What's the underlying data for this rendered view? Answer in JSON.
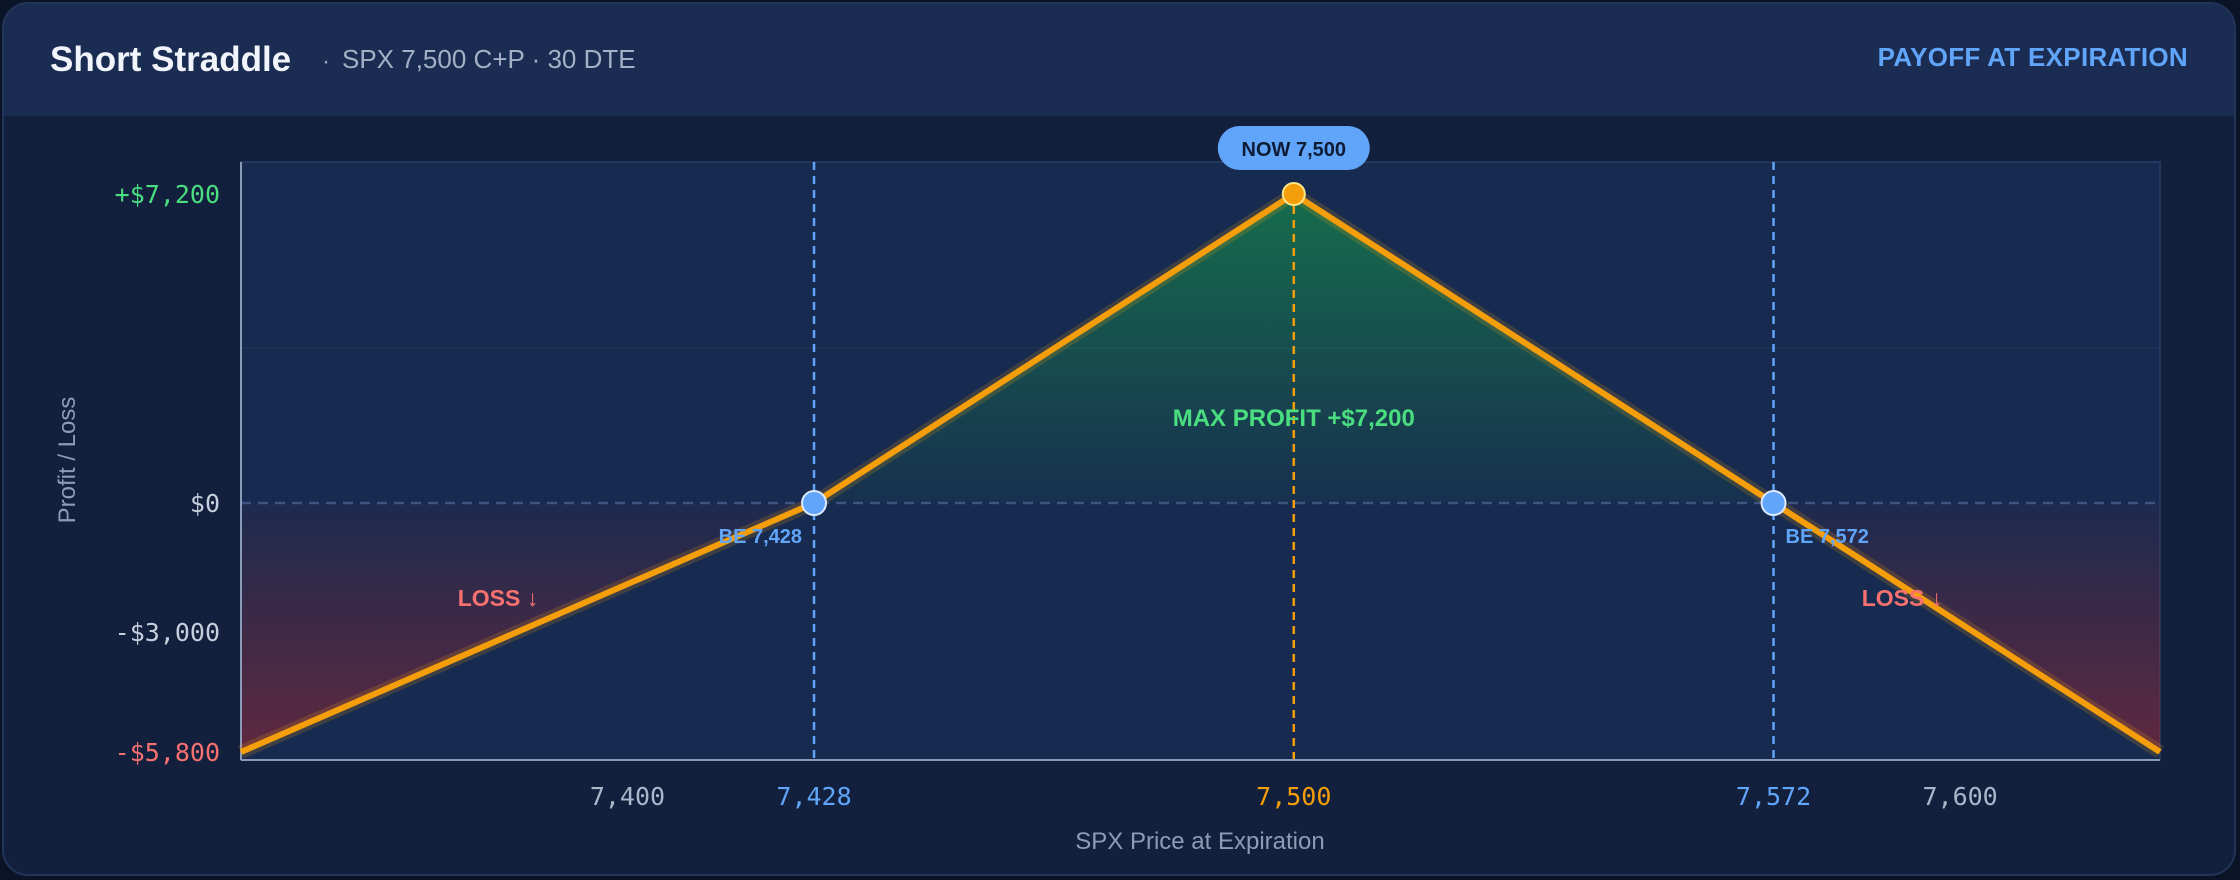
{
  "header": {
    "title": "Short Straddle",
    "separator": "·",
    "subtitle": "SPX 7,500 C+P · 30 DTE",
    "tag": "PAYOFF AT EXPIRATION"
  },
  "colors": {
    "payoff_line": "#f59e0b",
    "breakeven": "#60a5fa",
    "profit": "#4ade80",
    "loss": "#f87171",
    "grid": "#2a3d66"
  },
  "chart_data": {
    "type": "line",
    "xlabel": "SPX Price at Expiration",
    "ylabel": "Profit / Loss",
    "xlim": [
      7342,
      7630
    ],
    "ylim": [
      -5800,
      7200
    ],
    "x_ticks": [
      {
        "value": 7400,
        "label": "7,400",
        "style": "plain"
      },
      {
        "value": 7428,
        "label": "7,428",
        "style": "breakeven"
      },
      {
        "value": 7500,
        "label": "7,500",
        "style": "strike"
      },
      {
        "value": 7572,
        "label": "7,572",
        "style": "breakeven"
      },
      {
        "value": 7600,
        "label": "7,600",
        "style": "plain"
      }
    ],
    "y_ticks": [
      {
        "value": 7200,
        "label": "+$7,200",
        "style": "profit"
      },
      {
        "value": 0,
        "label": "$0",
        "style": "plain"
      },
      {
        "value": -3000,
        "label": "-$3,000",
        "style": "plain"
      },
      {
        "value": -5800,
        "label": "-$5,800",
        "style": "loss"
      }
    ],
    "series": [
      {
        "x": [
          7342,
          7428,
          7500,
          7572,
          7630
        ],
        "y": [
          -5800,
          0,
          7200,
          0,
          -5800
        ]
      }
    ],
    "breakevens": [
      {
        "x": 7428,
        "label": "BE 7,428"
      },
      {
        "x": 7572,
        "label": "BE 7,572"
      }
    ],
    "current": {
      "x": 7500,
      "y": 7200,
      "label": "NOW 7,500"
    },
    "annotations": {
      "max_profit_prefix": "MAX PROFIT",
      "max_profit_value": "+$7,200",
      "loss_left": "LOSS ↓",
      "loss_right": "LOSS ↓"
    }
  }
}
